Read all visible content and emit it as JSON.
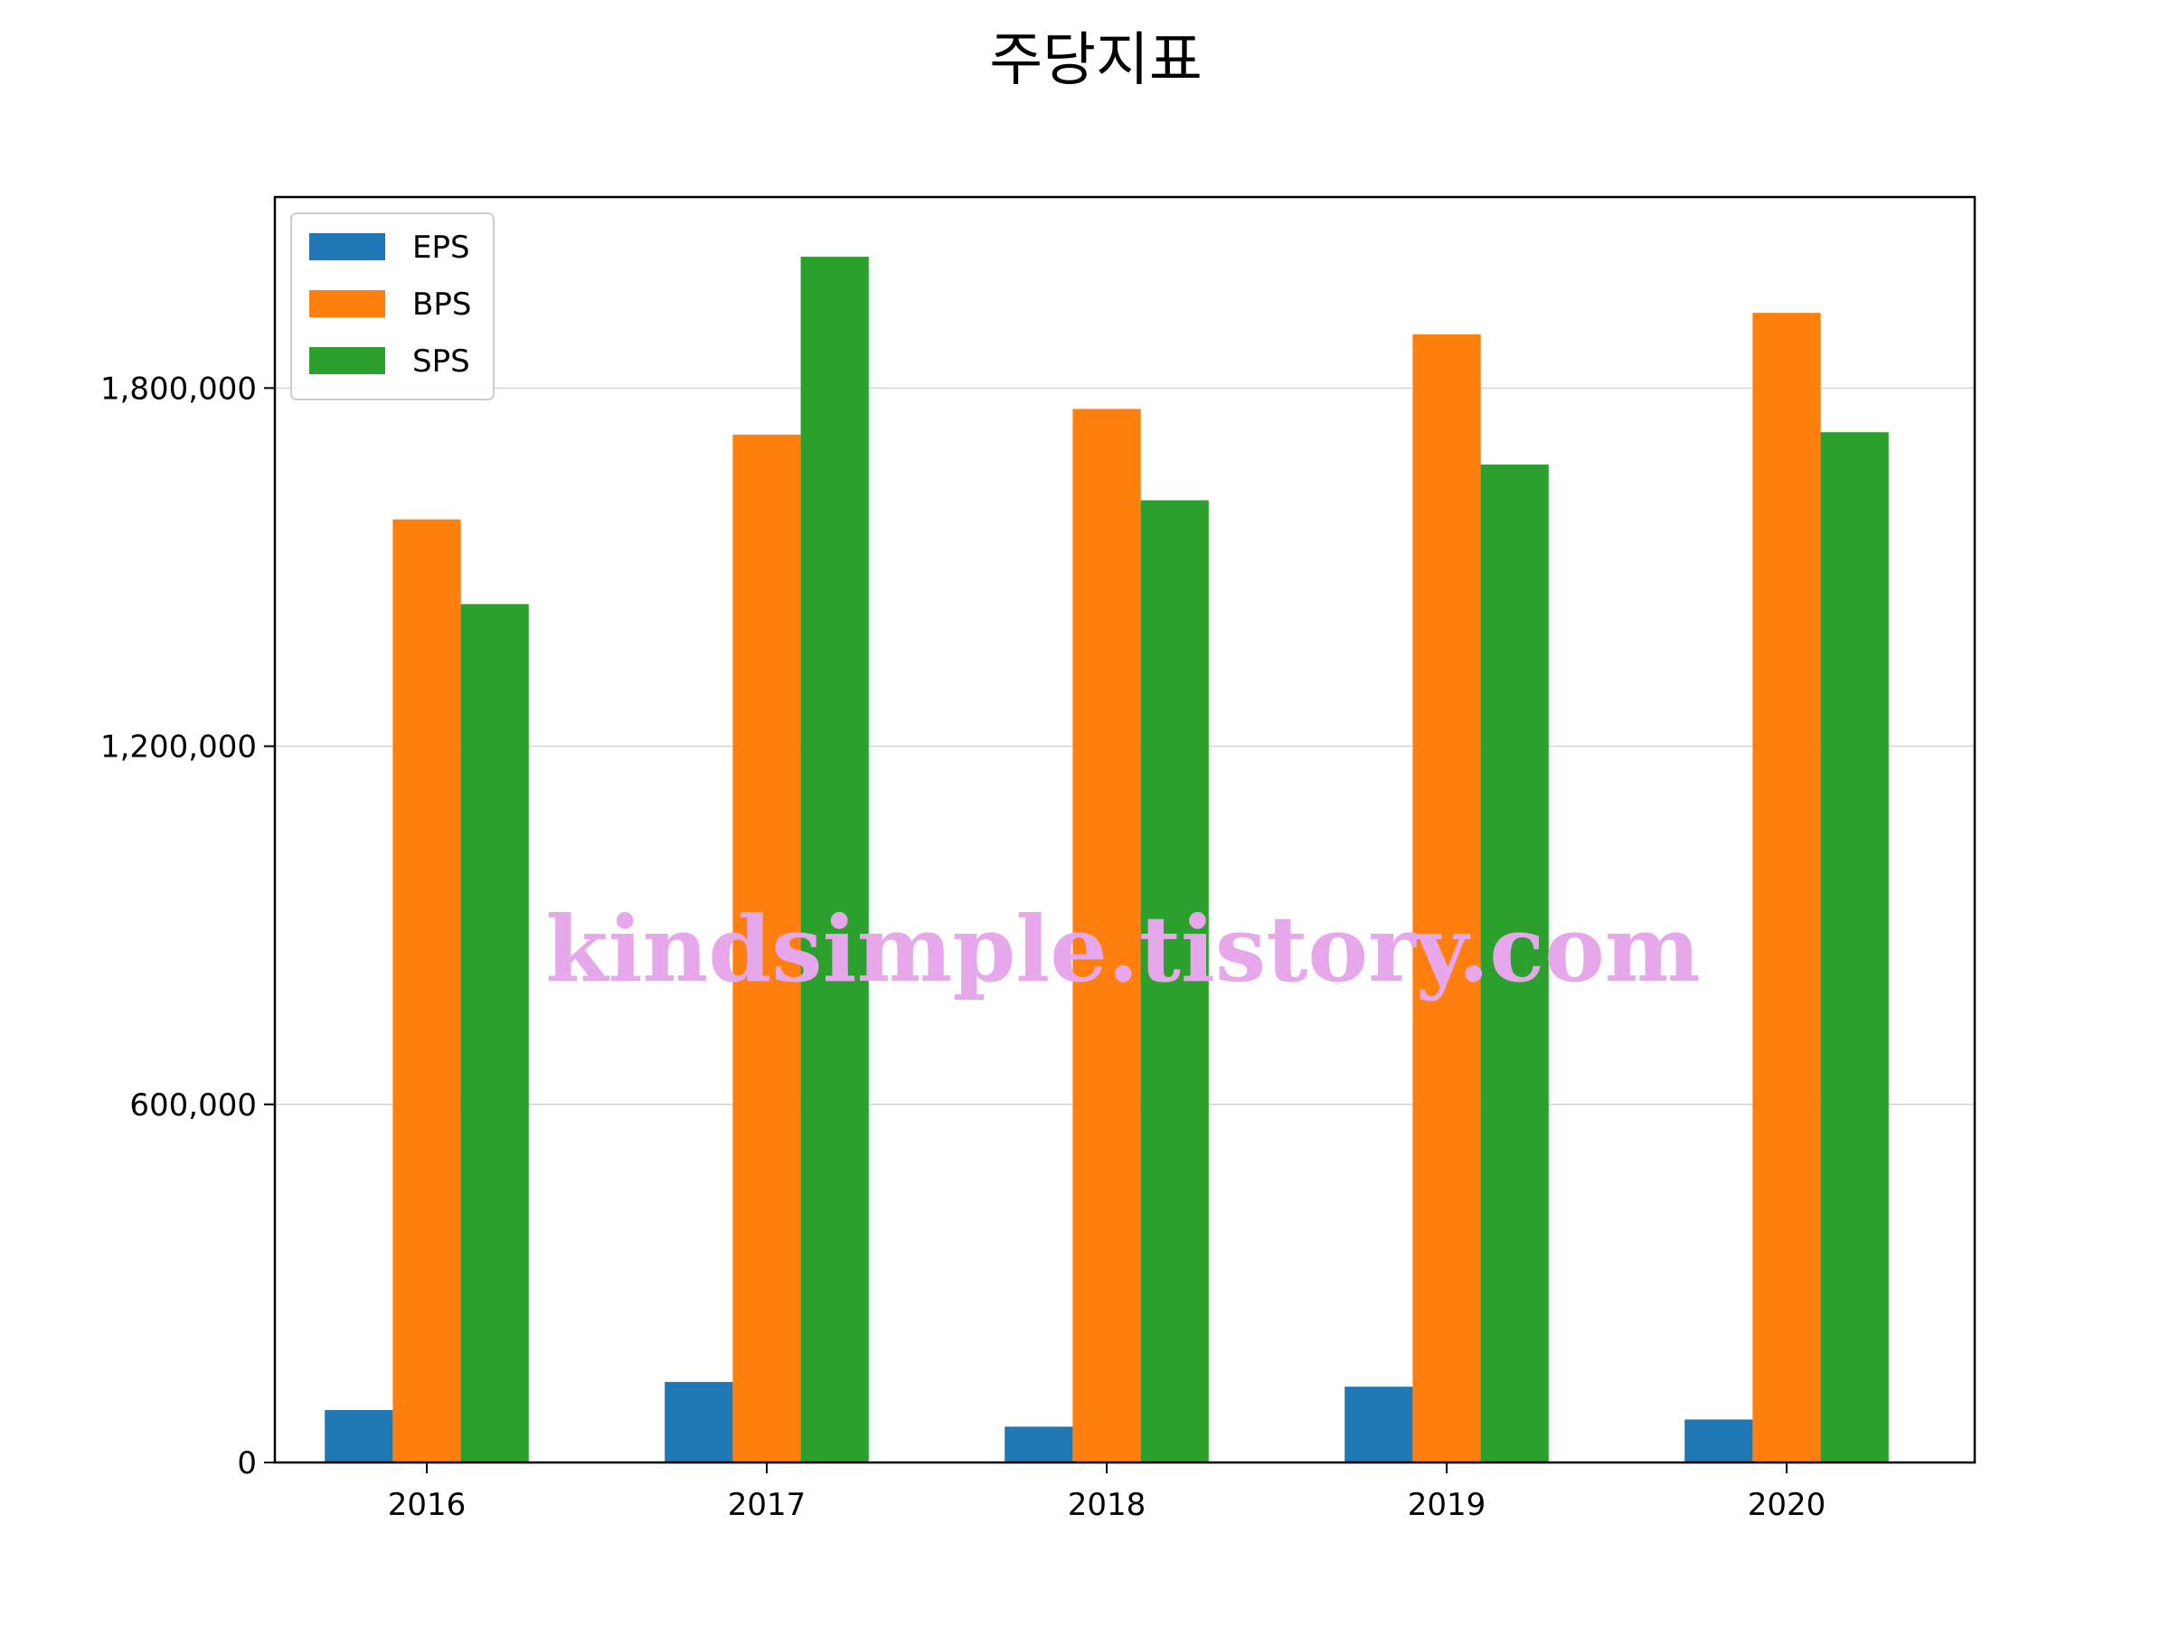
{
  "chart_data": {
    "type": "bar",
    "title": "주당지표",
    "xlabel": "",
    "ylabel": "",
    "categories": [
      "2016",
      "2017",
      "2018",
      "2019",
      "2020"
    ],
    "series": [
      {
        "name": "EPS",
        "color": "#1f77b4",
        "values": [
          88000,
          135000,
          60000,
          127000,
          72000
        ]
      },
      {
        "name": "BPS",
        "color": "#ff7f0e",
        "values": [
          1580000,
          1722000,
          1765000,
          1890000,
          1926000
        ]
      },
      {
        "name": "SPS",
        "color": "#2ca02c",
        "values": [
          1438000,
          2020000,
          1612000,
          1672000,
          1726000
        ]
      }
    ],
    "ylim": [
      0,
      2120000
    ],
    "yticks": [
      0,
      600000,
      1200000,
      1800000
    ],
    "ytick_labels": [
      "0",
      "600,000",
      "1,200,000",
      "1,800,000"
    ],
    "grid": "y",
    "legend_position": "top-left",
    "watermark": "kindsimple.tistory.com"
  }
}
